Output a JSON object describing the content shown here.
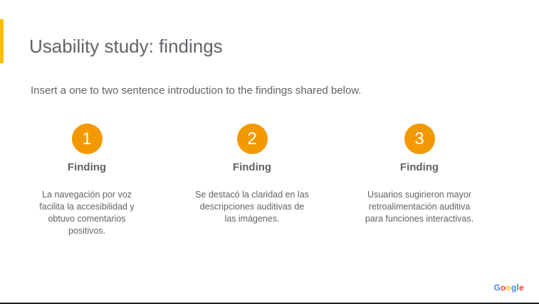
{
  "slide": {
    "title": "Usability study: findings",
    "intro": "Insert a one to two sentence introduction to the findings shared below."
  },
  "findings": [
    {
      "number": "1",
      "heading": "Finding",
      "text": "La navegación por voz facilita la accesibilidad y obtuvo comentarios positivos."
    },
    {
      "number": "2",
      "heading": "Finding",
      "text": "Se destacó la claridad en las descripciones auditivas de las imágenes."
    },
    {
      "number": "3",
      "heading": "Finding",
      "text": "Usuarios sugirieron mayor retroalimentación auditiva para funciones interactivas."
    }
  ],
  "footer": {
    "logo_letters": [
      "G",
      "o",
      "o",
      "g",
      "l",
      "e"
    ]
  },
  "colors": {
    "accent_bar": "#fbbc04",
    "number_circle": "#f29900",
    "text": "#5f6368"
  }
}
